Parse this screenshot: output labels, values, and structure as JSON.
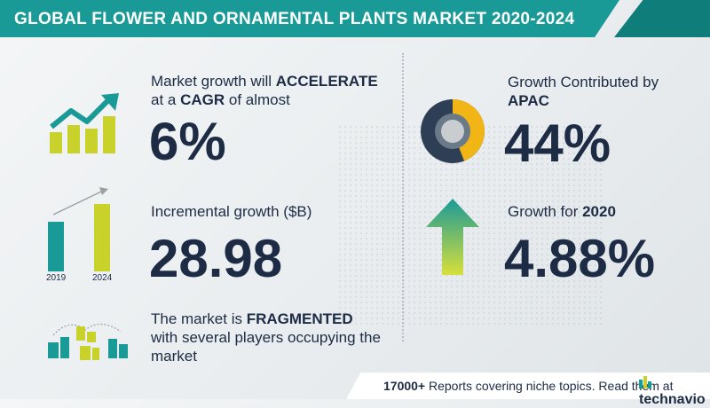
{
  "header": {
    "title": "GLOBAL FLOWER AND ORNAMENTAL PLANTS MARKET 2020-2024"
  },
  "cagr": {
    "line1_a": "Market growth will ",
    "line1_b": "ACCELERATE",
    "line2_a": "at a ",
    "line2_b": "CAGR",
    "line2_c": "  of almost",
    "value": "6%"
  },
  "incremental": {
    "label": "Incremental growth ($B)",
    "value": "28.98",
    "year_start": "2019",
    "year_end": "2024"
  },
  "fragmented": {
    "line1_a": "The market is ",
    "line1_b": "FRAGMENTED",
    "line2": "with several players occupying the",
    "line3": "market"
  },
  "apac": {
    "line1": "Growth Contributed by",
    "line2": "APAC",
    "value": "44%",
    "share": 0.44
  },
  "growth2020": {
    "label_a": "Growth for ",
    "label_b": "2020",
    "value": "4.88%"
  },
  "footer": {
    "count": "17000+",
    "text": " Reports covering niche topics. Read them at",
    "brand": "technavio"
  },
  "colors": {
    "teal": "#1a9a97",
    "yellow": "#c9d22b",
    "navy": "#1d2c44",
    "gold": "#f2b516",
    "gray": "#9aa1a5"
  },
  "icons": [
    "trend-up-chart-icon",
    "bar-growth-icon",
    "fragmented-buildings-icon",
    "donut-chart-icon",
    "up-arrow-icon",
    "technavio-logo-icon"
  ]
}
